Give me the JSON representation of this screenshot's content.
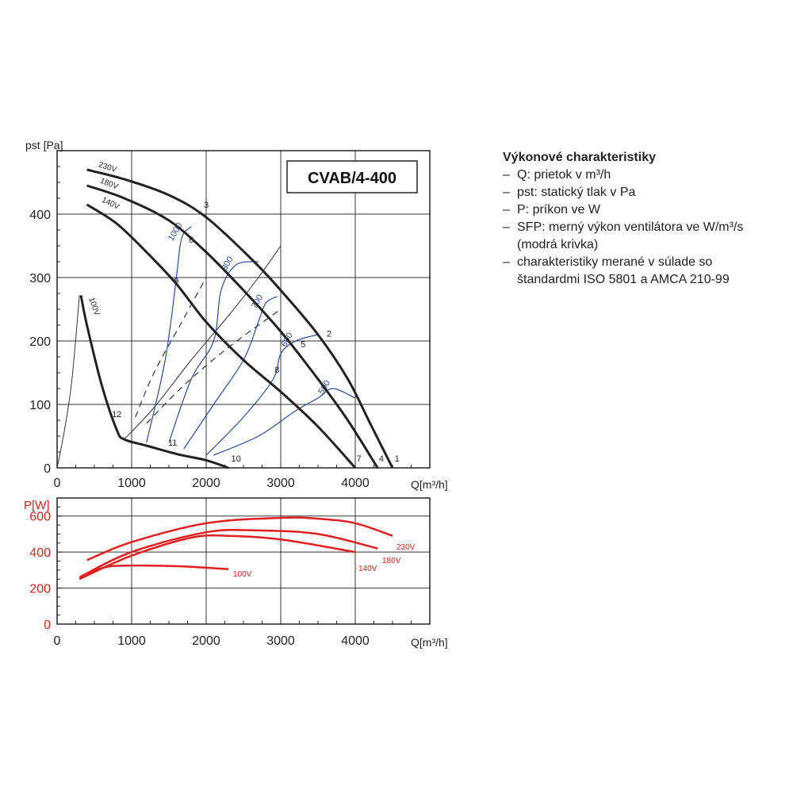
{
  "legend": {
    "title": "Výkonové charakteristiky",
    "items": [
      {
        "dash": "–",
        "text": "Q: prietok v m³/h"
      },
      {
        "dash": "–",
        "text": "pst: statický tlak v Pa"
      },
      {
        "dash": "–",
        "text": "P: príkon ve W"
      },
      {
        "dash": "–",
        "text": "SFP:  merný výkon ventilátora ve W/m³/s"
      },
      {
        "dash": "",
        "text": "(modrá krivka)"
      },
      {
        "dash": "–",
        "text": "charakteristiky merané v súlade so"
      },
      {
        "dash": "",
        "text": "štandardmi ISO 5801 a AMCA 210-99"
      }
    ]
  },
  "chart_data": [
    {
      "type": "line",
      "title": "CVAB/4-400",
      "ylabel": "pst [Pa]",
      "xlabel": "Q[m³/h]",
      "xlim": [
        0,
        5000
      ],
      "ylim": [
        0,
        500
      ],
      "xticks": [
        "0",
        "1000",
        "2000",
        "3000",
        "4000"
      ],
      "yticks": [
        "0",
        "100",
        "200",
        "300",
        "400"
      ],
      "grid": true,
      "series": [
        {
          "name": "230V",
          "color": "#222222",
          "x": [
            400,
            900,
            1500,
            2000,
            2600,
            3000,
            3500,
            3900,
            4200,
            4500
          ],
          "y": [
            470,
            455,
            430,
            395,
            330,
            280,
            210,
            140,
            70,
            0
          ]
        },
        {
          "name": "180V",
          "color": "#222222",
          "x": [
            400,
            900,
            1500,
            2000,
            2500,
            3000,
            3500,
            3900,
            4300
          ],
          "y": [
            445,
            425,
            390,
            340,
            280,
            215,
            140,
            75,
            0
          ]
        },
        {
          "name": "140V",
          "color": "#222222",
          "x": [
            400,
            800,
            1200,
            1600,
            2000,
            2500,
            3000,
            3500,
            4000
          ],
          "y": [
            415,
            385,
            340,
            290,
            230,
            170,
            120,
            65,
            0
          ]
        },
        {
          "name": "100V",
          "color": "#222222",
          "x": [
            320,
            400,
            600,
            800,
            900,
            1200,
            1600,
            2000,
            2300
          ],
          "y": [
            272,
            225,
            130,
            60,
            45,
            35,
            22,
            12,
            0
          ]
        }
      ],
      "system_curves": [
        {
          "x": [
            0,
            100,
            200,
            300
          ],
          "y": [
            0,
            60,
            140,
            272
          ]
        },
        {
          "x": [
            900,
            1300,
            1800,
            2300,
            2700,
            3000
          ],
          "y": [
            45,
            95,
            170,
            240,
            300,
            350
          ]
        }
      ],
      "dashed_curves": [
        {
          "x": [
            1050,
            1300,
            1650,
            2000
          ],
          "y": [
            80,
            150,
            225,
            300
          ]
        },
        {
          "x": [
            1200,
            1700,
            2300,
            3000
          ],
          "y": [
            70,
            130,
            190,
            250
          ]
        }
      ],
      "sfp_curves": [
        {
          "label": "1000",
          "color": "#2a4b9b",
          "x": [
            1200,
            1450,
            1600,
            1650,
            1700,
            1800
          ],
          "y": [
            40,
            170,
            300,
            350,
            370,
            380
          ]
        },
        {
          "label": "800",
          "color": "#2a4b9b",
          "x": [
            1500,
            1800,
            2100,
            2200,
            2400,
            2700
          ],
          "y": [
            40,
            140,
            200,
            280,
            320,
            325
          ]
        },
        {
          "label": "700",
          "color": "#2a4b9b",
          "x": [
            1700,
            2100,
            2500,
            2700,
            2800,
            2950
          ],
          "y": [
            30,
            100,
            170,
            230,
            260,
            270
          ]
        },
        {
          "label": "600",
          "color": "#2a4b9b",
          "x": [
            2000,
            2500,
            2900,
            3000,
            3200,
            3500
          ],
          "y": [
            20,
            80,
            140,
            180,
            200,
            210
          ]
        },
        {
          "label": "500",
          "color": "#2a4b9b",
          "x": [
            2100,
            2700,
            3200,
            3500,
            3700,
            4000
          ],
          "y": [
            20,
            50,
            90,
            110,
            125,
            110
          ]
        }
      ],
      "point_labels": [
        {
          "text": "1",
          "x": 4560,
          "y": 10
        },
        {
          "text": "2",
          "x": 3650,
          "y": 207
        },
        {
          "text": "3",
          "x": 2000,
          "y": 410
        },
        {
          "text": "4",
          "x": 4350,
          "y": 10
        },
        {
          "text": "5",
          "x": 3300,
          "y": 190
        },
        {
          "text": "6",
          "x": 1800,
          "y": 355
        },
        {
          "text": "7",
          "x": 4050,
          "y": 10
        },
        {
          "text": "8",
          "x": 2950,
          "y": 150
        },
        {
          "text": "9",
          "x": 1600,
          "y": 290
        },
        {
          "text": "10",
          "x": 2400,
          "y": 10
        },
        {
          "text": "11",
          "x": 1550,
          "y": 35
        },
        {
          "text": "12",
          "x": 800,
          "y": 80
        }
      ]
    },
    {
      "type": "line",
      "ylabel": "P[W]",
      "xlabel": "Q[m³/h]",
      "xlim": [
        0,
        5000
      ],
      "ylim": [
        0,
        700
      ],
      "xticks": [
        "0",
        "1000",
        "2000",
        "3000",
        "4000"
      ],
      "yticks": [
        "0",
        "200",
        "400",
        "600"
      ],
      "grid": true,
      "series": [
        {
          "name": "230V",
          "color": "#e02020",
          "x": [
            400,
            1000,
            2000,
            3000,
            3500,
            4000,
            4500
          ],
          "y": [
            355,
            455,
            560,
            590,
            585,
            560,
            490
          ]
        },
        {
          "name": "180V",
          "color": "#e02020",
          "x": [
            300,
            1000,
            2000,
            2700,
            3500,
            4300
          ],
          "y": [
            260,
            400,
            510,
            520,
            500,
            420
          ]
        },
        {
          "name": "140V",
          "color": "#e02020",
          "x": [
            300,
            1000,
            1800,
            2300,
            3000,
            4000
          ],
          "y": [
            250,
            380,
            480,
            490,
            470,
            400
          ]
        },
        {
          "name": "100V",
          "color": "#e02020",
          "x": [
            400,
            700,
            1200,
            1700,
            2300
          ],
          "y": [
            280,
            320,
            325,
            320,
            305
          ]
        }
      ]
    }
  ]
}
